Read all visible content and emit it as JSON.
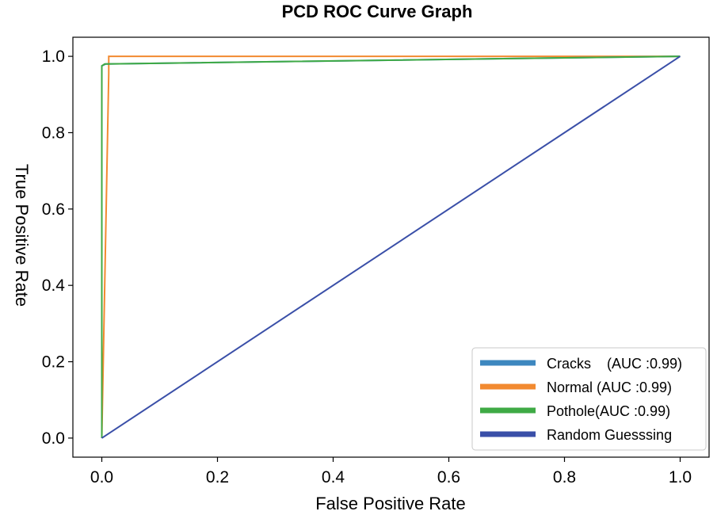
{
  "chart_data": {
    "type": "line",
    "title": "PCD ROC Curve Graph",
    "xlabel": "False Positive Rate",
    "ylabel": "True Positive Rate",
    "xlim": [
      -0.05,
      1.05
    ],
    "ylim": [
      -0.05,
      1.05
    ],
    "xticks": [
      0.0,
      0.2,
      0.4,
      0.6,
      0.8,
      1.0
    ],
    "xtick_labels": [
      "0.0",
      "0.2",
      "0.4",
      "0.6",
      "0.8",
      "1.0"
    ],
    "yticks": [
      0.0,
      0.2,
      0.4,
      0.6,
      0.8,
      1.0
    ],
    "ytick_labels": [
      "0.0",
      "0.2",
      "0.4",
      "0.6",
      "0.8",
      "1.0"
    ],
    "legend_position": "lower-right",
    "series": [
      {
        "name": "Cracks",
        "label": "Cracks    (AUC :0.99)",
        "auc": 0.99,
        "color": "#3d87bf",
        "x": [
          0.0,
          0.0,
          0.007,
          1.0
        ],
        "y": [
          0.0,
          0.975,
          0.98,
          1.0
        ]
      },
      {
        "name": "Normal",
        "label": "Normal (AUC :0.99)",
        "auc": 0.99,
        "color": "#f28a30",
        "x": [
          0.0,
          0.012,
          0.012,
          1.0
        ],
        "y": [
          0.0,
          0.955,
          1.0,
          1.0
        ]
      },
      {
        "name": "Pothole",
        "label": "Pothole(AUC :0.99)",
        "auc": 0.99,
        "color": "#3faa45",
        "x": [
          0.0,
          0.0,
          0.005,
          1.0
        ],
        "y": [
          0.0,
          0.975,
          0.98,
          1.0
        ]
      },
      {
        "name": "Random Guesssing",
        "label": "Random Guesssing",
        "color": "#3a4fa8",
        "x": [
          0.0,
          1.0
        ],
        "y": [
          0.0,
          1.0
        ]
      }
    ]
  }
}
